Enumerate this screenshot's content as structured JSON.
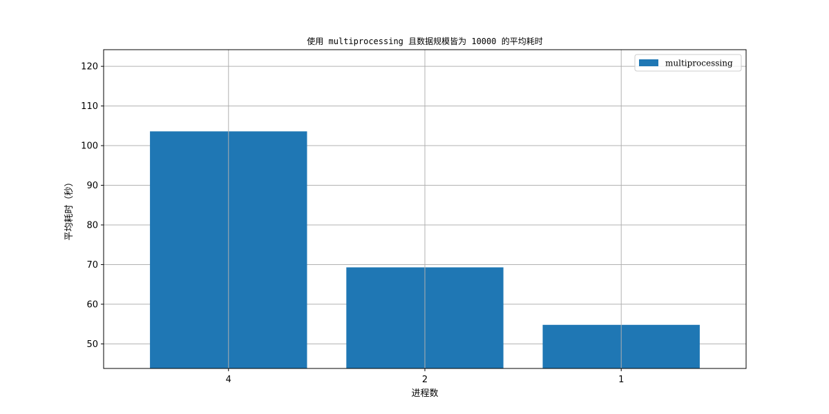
{
  "chart_data": {
    "type": "bar",
    "title": "使用 multiprocessing 且数据规模皆为 10000 的平均耗时",
    "xlabel": "进程数",
    "ylabel": "平均耗时（秒）",
    "categories": [
      "4",
      "2",
      "1"
    ],
    "series": [
      {
        "name": "multiprocessing",
        "values": [
          103.6,
          69.3,
          54.8
        ]
      }
    ],
    "ylim": [
      43.8,
      124.2
    ],
    "yticks": [
      50,
      60,
      70,
      80,
      90,
      100,
      110,
      120
    ],
    "grid": true,
    "legend_position": "top-right",
    "colors": {
      "bar": "#1f77b4",
      "grid": "#b0b0b0",
      "axis": "#000000"
    }
  }
}
